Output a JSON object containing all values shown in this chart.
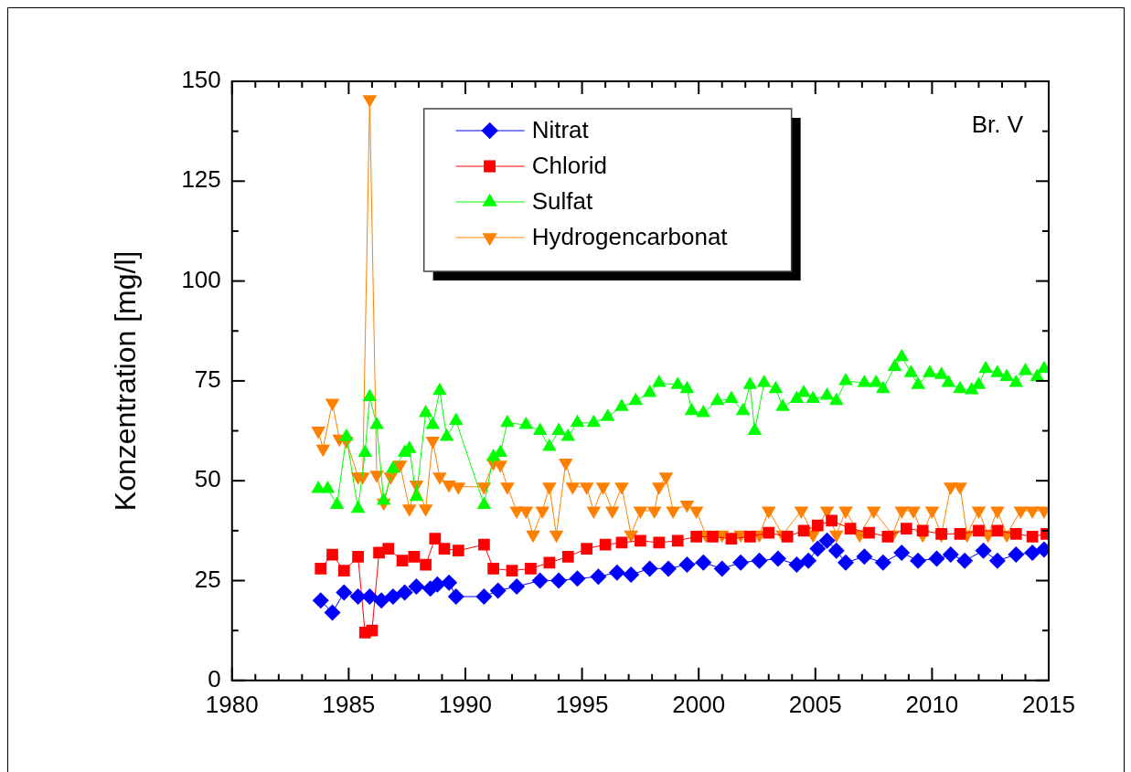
{
  "chart_data": {
    "type": "line",
    "xlabel": null,
    "ylabel": "Konzentration [mg/l]",
    "annotations": [
      "Br. V"
    ],
    "xlim": [
      1980,
      2015
    ],
    "xticks": [
      1980,
      1985,
      1990,
      1995,
      2000,
      2005,
      2010,
      2015
    ],
    "ylim": [
      0,
      150
    ],
    "yticks": [
      0,
      25,
      50,
      75,
      100,
      125,
      150
    ],
    "grid": false,
    "legend": "top",
    "line_style": "solid",
    "series": [
      {
        "name": "Nitrat",
        "color": "#0000ff",
        "marker": "diamond",
        "x": [
          1983.8,
          1984.3,
          1984.8,
          1985.4,
          1985.9,
          1986.4,
          1986.9,
          1987.4,
          1987.9,
          1988.5,
          1988.8,
          1989.3,
          1989.6,
          1990.8,
          1991.4,
          1992.2,
          1993.2,
          1994.0,
          1994.8,
          1995.7,
          1996.5,
          1997.1,
          1997.9,
          1998.7,
          1999.5,
          2000.2,
          2001.0,
          2001.8,
          2002.6,
          2003.4,
          2004.2,
          2004.7,
          2005.1,
          2005.5,
          2005.9,
          2006.3,
          2007.1,
          2007.9,
          2008.7,
          2009.4,
          2010.2,
          2010.8,
          2011.4,
          2012.2,
          2012.8,
          2013.6,
          2014.3,
          2014.8
        ],
        "values": [
          20,
          17,
          22,
          21,
          21,
          20,
          21,
          22,
          23.5,
          23,
          24,
          24.5,
          21,
          21,
          22.5,
          23.5,
          25,
          25,
          25.5,
          26,
          27,
          26.5,
          28,
          28,
          29,
          29.5,
          28,
          29.5,
          30,
          30.5,
          29,
          30,
          33,
          35,
          32.5,
          29.5,
          31,
          29.5,
          32,
          30,
          30.5,
          31.5,
          30,
          32.5,
          30,
          31.5,
          32,
          32.8
        ]
      },
      {
        "name": "Chlorid",
        "color": "#ff0000",
        "marker": "square",
        "x": [
          1983.8,
          1984.3,
          1984.8,
          1985.4,
          1985.7,
          1986.0,
          1986.3,
          1986.7,
          1987.3,
          1987.8,
          1988.3,
          1988.7,
          1989.1,
          1989.7,
          1990.8,
          1991.2,
          1992.0,
          1992.8,
          1993.6,
          1994.4,
          1995.2,
          1996.0,
          1996.7,
          1997.5,
          1998.3,
          1999.1,
          1999.9,
          2000.6,
          2001.4,
          2002.2,
          2003.0,
          2003.8,
          2004.5,
          2005.1,
          2005.7,
          2006.5,
          2007.3,
          2008.1,
          2008.9,
          2009.6,
          2010.4,
          2011.2,
          2012.0,
          2012.8,
          2013.6,
          2014.3,
          2014.9
        ],
        "values": [
          28,
          31.5,
          27.5,
          31,
          12,
          12.5,
          32,
          33,
          30,
          31,
          29,
          35.5,
          33,
          32.5,
          34,
          28,
          27.5,
          28,
          29.5,
          31,
          33,
          34,
          34.5,
          35,
          34.5,
          35,
          36,
          36,
          35.5,
          36,
          37,
          36,
          37.5,
          38.8,
          40,
          38,
          37,
          36,
          38,
          37.5,
          36.7,
          36.7,
          37.5,
          37.5,
          36.7,
          36,
          36.7
        ]
      },
      {
        "name": "Sulfat",
        "color": "#00ff00",
        "marker": "triangle",
        "x": [
          1983.7,
          1984.1,
          1984.5,
          1984.9,
          1985.4,
          1985.7,
          1985.9,
          1986.2,
          1986.5,
          1986.9,
          1987.4,
          1987.6,
          1987.9,
          1988.3,
          1988.6,
          1988.9,
          1989.2,
          1989.6,
          1990.8,
          1991.2,
          1991.5,
          1991.8,
          1992.6,
          1993.2,
          1993.6,
          1994.0,
          1994.4,
          1994.8,
          1995.5,
          1996.1,
          1996.7,
          1997.3,
          1997.9,
          1998.3,
          1999.1,
          1999.5,
          1999.7,
          2000.2,
          2000.8,
          2001.4,
          2001.9,
          2002.2,
          2002.4,
          2002.8,
          2003.3,
          2003.6,
          2004.2,
          2004.5,
          2004.9,
          2005.5,
          2005.9,
          2006.3,
          2007.1,
          2007.6,
          2007.9,
          2008.4,
          2008.7,
          2009.1,
          2009.4,
          2009.9,
          2010.4,
          2010.7,
          2011.2,
          2011.7,
          2012.0,
          2012.3,
          2012.8,
          2013.2,
          2013.6,
          2014.0,
          2014.5,
          2014.8
        ],
        "values": [
          48,
          48,
          44,
          61,
          43,
          57,
          71,
          64,
          45,
          53,
          57,
          58,
          46,
          67,
          64,
          72.5,
          61,
          65,
          44,
          56,
          57,
          64.5,
          64,
          62.5,
          58.5,
          62.5,
          61,
          64.5,
          64.5,
          66,
          68.5,
          70,
          72,
          74.5,
          74,
          73,
          67.5,
          67,
          70,
          70.5,
          67.5,
          74,
          62.5,
          74.5,
          73,
          68.5,
          70.5,
          72,
          70.5,
          71.3,
          70,
          75,
          74.5,
          74.5,
          73,
          78.5,
          81,
          77,
          74,
          77,
          76.5,
          74.5,
          73,
          72.7,
          74,
          78,
          77,
          76,
          74.5,
          77.5,
          76,
          78
        ]
      },
      {
        "name": "Hydrogencarbonat",
        "color": "#ff8000",
        "marker": "triangle-down",
        "x": [
          1983.7,
          1983.9,
          1984.3,
          1984.6,
          1984.9,
          1985.4,
          1985.6,
          1985.9,
          1986.2,
          1986.5,
          1986.8,
          1987.2,
          1987.6,
          1987.9,
          1988.3,
          1988.6,
          1988.9,
          1989.3,
          1989.7,
          1990.8,
          1991.2,
          1991.5,
          1991.8,
          1992.2,
          1992.6,
          1992.9,
          1993.3,
          1993.6,
          1993.9,
          1994.3,
          1994.6,
          1995.2,
          1995.5,
          1995.9,
          1996.3,
          1996.7,
          1997.1,
          1997.5,
          1998.1,
          1998.3,
          1998.6,
          1998.9,
          1999.5,
          1999.9,
          2000.3,
          2001.0,
          2001.8,
          2002.6,
          2003.0,
          2003.6,
          2004.4,
          2004.9,
          2005.5,
          2005.9,
          2006.3,
          2006.9,
          2007.5,
          2008.3,
          2008.7,
          2009.2,
          2009.6,
          2010.0,
          2010.4,
          2010.8,
          2011.2,
          2011.5,
          2012.0,
          2012.4,
          2012.8,
          2013.2,
          2013.8,
          2014.3,
          2014.8
        ],
        "values": [
          62.5,
          58,
          69.5,
          60.5,
          60,
          51,
          51,
          145.5,
          51.5,
          44.5,
          51,
          54,
          43,
          49,
          43,
          60,
          51,
          49,
          48.5,
          48.5,
          54.5,
          54,
          48.5,
          42.5,
          42.5,
          36.5,
          42.5,
          48.5,
          36.5,
          54.5,
          48.5,
          48.5,
          42.5,
          48.5,
          42.5,
          48.5,
          36.5,
          42.5,
          42.5,
          48.5,
          51,
          42.5,
          44,
          42.5,
          36.5,
          36.5,
          36.5,
          36.5,
          42.5,
          36.5,
          42.5,
          36.5,
          42.5,
          36.5,
          42.5,
          36.5,
          42.5,
          36.5,
          42.5,
          42.5,
          36.5,
          42.5,
          36.5,
          48.5,
          48.5,
          36.5,
          42.5,
          36.5,
          42.5,
          36.5,
          42.5,
          42.5,
          42.5
        ]
      }
    ]
  }
}
